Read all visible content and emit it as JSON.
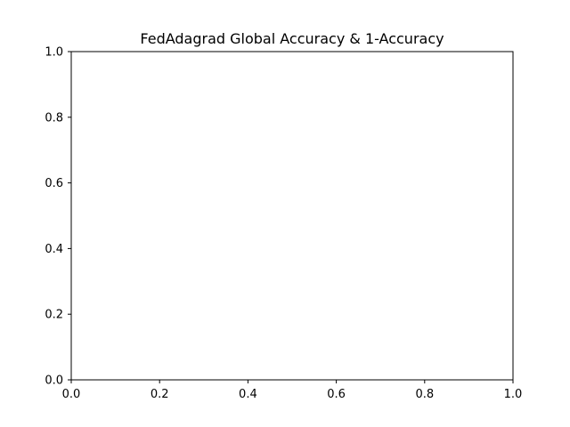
{
  "chart_data": {
    "type": "line",
    "title": "FedAdagrad Global Accuracy & 1-Accuracy",
    "xlabel": "",
    "ylabel": "",
    "xlim": [
      0,
      1
    ],
    "ylim": [
      0,
      1
    ],
    "xticks": [
      0.0,
      0.2,
      0.4,
      0.6,
      0.8,
      1.0
    ],
    "yticks": [
      0.0,
      0.2,
      0.4,
      0.6,
      0.8,
      1.0
    ],
    "xtick_labels": [
      "0.0",
      "0.2",
      "0.4",
      "0.6",
      "0.8",
      "1.0"
    ],
    "ytick_labels": [
      "0.0",
      "0.2",
      "0.4",
      "0.6",
      "0.8",
      "1.0"
    ],
    "grid": false,
    "legend": null,
    "series": []
  },
  "colors": {
    "background": "#ffffff",
    "axes": "#000000",
    "text": "#000000"
  }
}
